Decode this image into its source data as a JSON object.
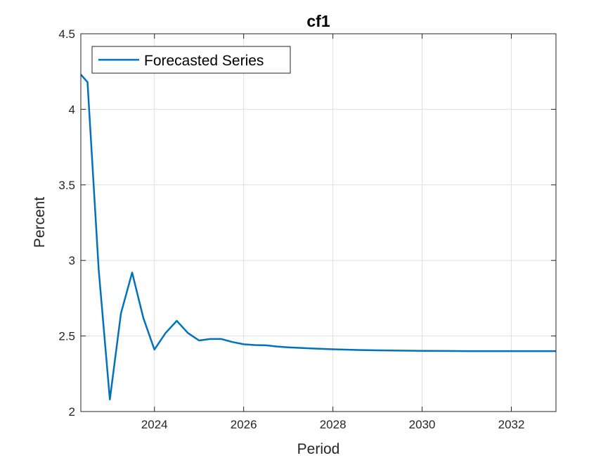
{
  "chart_data": {
    "type": "line",
    "title": "cf1",
    "xlabel": "Period",
    "ylabel": "Percent",
    "xlim": [
      2022.35,
      2033.0
    ],
    "ylim": [
      2,
      4.5
    ],
    "x_ticks": [
      2024,
      2026,
      2028,
      2030,
      2032
    ],
    "x_tick_labels": [
      "2024",
      "2026",
      "2028",
      "2030",
      "2032"
    ],
    "y_ticks": [
      2,
      2.5,
      3,
      3.5,
      4,
      4.5
    ],
    "y_tick_labels": [
      "2",
      "2.5",
      "3",
      "3.5",
      "4",
      "4.5"
    ],
    "grid": true,
    "legend_location": "top-left",
    "series": [
      {
        "name": "Forecasted Series",
        "color": "#0072BD",
        "x": [
          2022.35,
          2022.5,
          2022.75,
          2023.0,
          2023.25,
          2023.5,
          2023.75,
          2024.0,
          2024.25,
          2024.5,
          2024.75,
          2025.0,
          2025.25,
          2025.5,
          2025.75,
          2026.0,
          2026.25,
          2026.5,
          2026.75,
          2027.0,
          2027.5,
          2028.0,
          2028.5,
          2029.0,
          2030.0,
          2031.0,
          2032.0,
          2033.0
        ],
        "y": [
          4.23,
          4.18,
          2.94,
          2.08,
          2.65,
          2.92,
          2.62,
          2.41,
          2.52,
          2.6,
          2.52,
          2.47,
          2.48,
          2.48,
          2.46,
          2.445,
          2.44,
          2.438,
          2.43,
          2.425,
          2.418,
          2.412,
          2.408,
          2.405,
          2.402,
          2.4,
          2.4,
          2.4
        ]
      }
    ]
  }
}
